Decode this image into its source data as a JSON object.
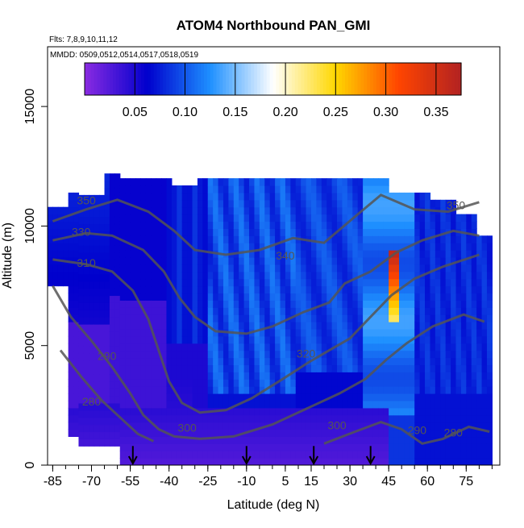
{
  "chart_data": {
    "type": "heatmap",
    "title": "ATOM4 Northbound PAN_GMI",
    "annotations": [
      "Flts: 7,8,9,10,11,12",
      "MMDD: 0509,0512,0514,0517,0518,0519"
    ],
    "xlabel": "Latitude (deg N)",
    "ylabel": "Altitude (m)",
    "xlim": [
      -87,
      88
    ],
    "ylim": [
      0,
      17500
    ],
    "x_ticks": [
      -85,
      -70,
      -55,
      -40,
      -25,
      -10,
      5,
      15,
      30,
      45,
      60,
      75
    ],
    "y_ticks": [
      0,
      5000,
      10000,
      15000
    ],
    "colorbar": {
      "range": [
        0,
        0.375
      ],
      "ticks": [
        0.05,
        0.1,
        0.15,
        0.2,
        0.25,
        0.3,
        0.35
      ],
      "tick_labels": [
        "0.05",
        "0.10",
        "0.15",
        "0.20",
        "0.25",
        "0.30",
        "0.35"
      ],
      "colors": [
        "#8a2be2",
        "#0000cd",
        "#1e90ff",
        "#ffffff",
        "#ffd700",
        "#ff4500",
        "#b22222"
      ]
    },
    "flight_arrows_lat": [
      -54,
      -10,
      16,
      38
    ],
    "contour_labels": [
      {
        "text": "350",
        "lat": -72,
        "alt": 10900
      },
      {
        "text": "330",
        "lat": -74,
        "alt": 9600
      },
      {
        "text": "310",
        "lat": -72,
        "alt": 8300
      },
      {
        "text": "340",
        "lat": 5,
        "alt": 8600
      },
      {
        "text": "320",
        "lat": 13,
        "alt": 4500
      },
      {
        "text": "290",
        "lat": -64,
        "alt": 4400
      },
      {
        "text": "280",
        "lat": -70,
        "alt": 2500
      },
      {
        "text": "300",
        "lat": -33,
        "alt": 1400
      },
      {
        "text": "300",
        "lat": 25,
        "alt": 1500
      },
      {
        "text": "290",
        "lat": 56,
        "alt": 1300
      },
      {
        "text": "280",
        "lat": 70,
        "alt": 1200
      },
      {
        "text": "350",
        "lat": 71,
        "alt": 10700
      }
    ],
    "grid": false
  }
}
